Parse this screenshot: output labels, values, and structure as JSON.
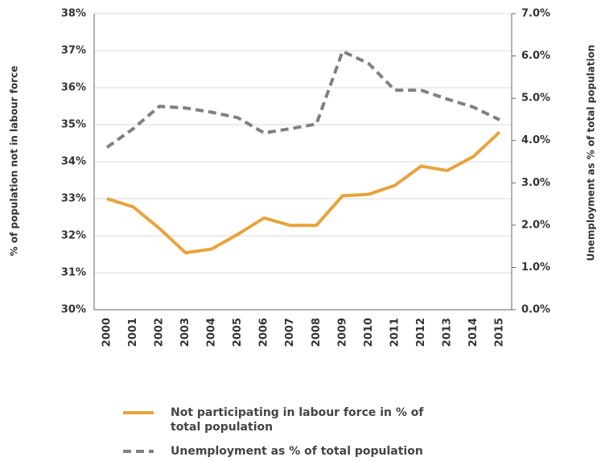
{
  "chart_data": {
    "type": "line",
    "categories": [
      "2000",
      "2001",
      "2002",
      "2003",
      "2004",
      "2005",
      "2006",
      "2007",
      "2008",
      "2009",
      "2010",
      "2011",
      "2012",
      "2013",
      "2014",
      "2015"
    ],
    "series": [
      {
        "name": "Not participating in labour force in % of total population",
        "color": "#e8a33c",
        "axis": "y",
        "values": [
          33.0,
          32.78,
          32.2,
          31.54,
          31.64,
          32.04,
          32.48,
          32.28,
          32.28,
          33.08,
          33.12,
          33.36,
          33.88,
          33.76,
          34.14,
          34.8
        ]
      },
      {
        "name": "Unemployment as % of total  population",
        "color": "#808080",
        "axis": "y2",
        "dashed": true,
        "values": [
          3.84,
          4.28,
          4.81,
          4.77,
          4.67,
          4.54,
          4.18,
          4.28,
          4.39,
          6.11,
          5.82,
          5.19,
          5.19,
          4.98,
          4.79,
          4.49
        ]
      }
    ],
    "ylabel": "% of population not in labour force",
    "y2label": "Unemployment as % of total  population",
    "ylim": [
      30,
      38
    ],
    "yticks": [
      {
        "value": 30,
        "label": "30%"
      },
      {
        "value": 31,
        "label": "31%"
      },
      {
        "value": 32,
        "label": "32%"
      },
      {
        "value": 33,
        "label": "33%"
      },
      {
        "value": 34,
        "label": "34%"
      },
      {
        "value": 35,
        "label": "35%"
      },
      {
        "value": 36,
        "label": "36%"
      },
      {
        "value": 37,
        "label": "37%"
      },
      {
        "value": 38,
        "label": "38%"
      }
    ],
    "y2lim": [
      0,
      7
    ],
    "y2ticks": [
      {
        "value": 0,
        "label": "0.0%"
      },
      {
        "value": 1,
        "label": "1.0%"
      },
      {
        "value": 2,
        "label": "2.0%"
      },
      {
        "value": 3,
        "label": "3.0%"
      },
      {
        "value": 4,
        "label": "4.0%"
      },
      {
        "value": 5,
        "label": "5.0%"
      },
      {
        "value": 6,
        "label": "6.0%"
      },
      {
        "value": 7,
        "label": "7.0%"
      }
    ],
    "grid": true
  }
}
